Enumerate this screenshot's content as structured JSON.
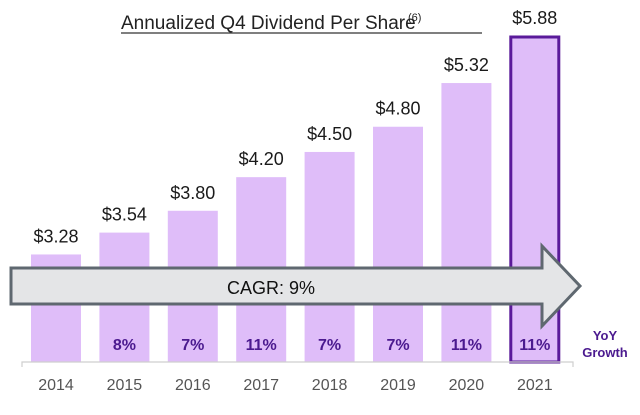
{
  "chart_data": {
    "type": "bar",
    "title": "Annualized Q4 Dividend Per Share",
    "title_footnote": "(6)",
    "categories": [
      "2014",
      "2015",
      "2016",
      "2017",
      "2018",
      "2019",
      "2020",
      "2021"
    ],
    "values": [
      3.28,
      3.54,
      3.8,
      4.2,
      4.5,
      4.8,
      5.32,
      5.88
    ],
    "value_labels": [
      "$3.28",
      "$3.54",
      "$3.80",
      "$4.20",
      "$4.50",
      "$4.80",
      "$5.32",
      "$5.88"
    ],
    "yoy_growth": [
      "",
      "8%",
      "7%",
      "11%",
      "7%",
      "7%",
      "11%",
      "11%"
    ],
    "yoy_label": [
      "YoY",
      "Growth"
    ],
    "highlighted_category": "2021",
    "annotation": "CAGR: 9%",
    "xlabel": "",
    "ylabel": "",
    "ylim": [
      2.0,
      6.0
    ],
    "grid": false,
    "colors": {
      "bar": "#dfbdf9",
      "highlight_border": "#5a1a9a",
      "growth_text": "#4b1a8f",
      "arrow_fill": "#e4e5e7",
      "arrow_stroke": "#5f6870"
    }
  }
}
